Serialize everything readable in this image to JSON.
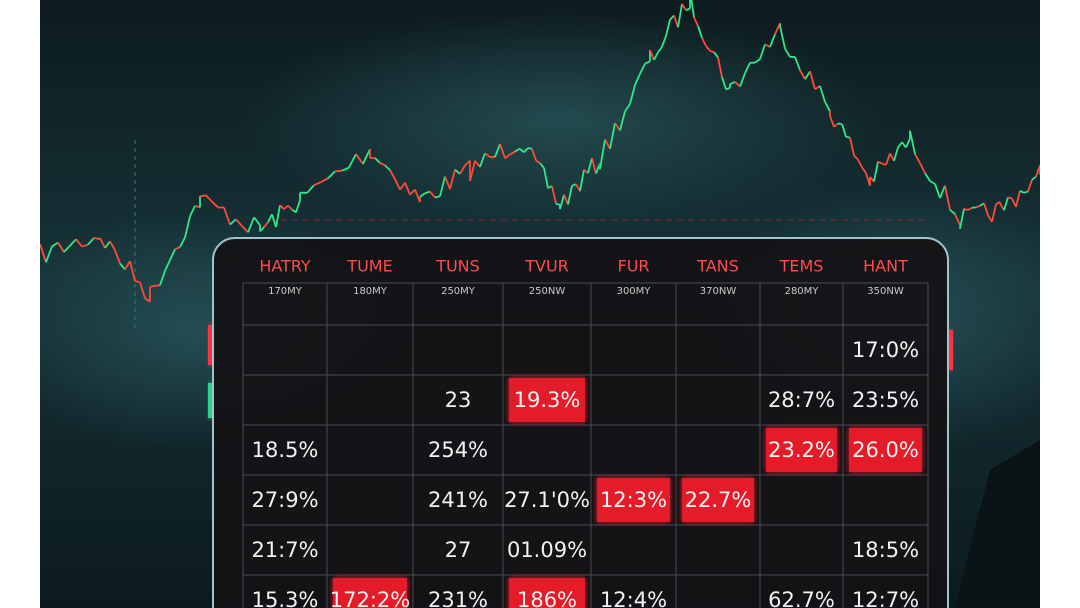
{
  "table": {
    "headers": [
      "HATRY",
      "TUME",
      "TUNS",
      "TVUR",
      "FUR",
      "TANS",
      "TEMS",
      "HANT"
    ],
    "subheaders": [
      "170MY",
      "180MY",
      "250MY",
      "250NW",
      "300MY",
      "370NW",
      "280MY",
      "350NW"
    ],
    "rows": [
      [
        null,
        null,
        null,
        null,
        null,
        null,
        null,
        {
          "text": "17:0%"
        }
      ],
      [
        null,
        null,
        {
          "text": "23"
        },
        {
          "text": "19.3%",
          "highlight": true
        },
        null,
        null,
        {
          "text": "28:7%"
        },
        {
          "text": "23:5%"
        }
      ],
      [
        {
          "text": "18.5%"
        },
        null,
        {
          "text": "254%"
        },
        null,
        null,
        null,
        {
          "text": "23.2%",
          "highlight": true
        },
        {
          "text": "26.0%",
          "highlight": true
        }
      ],
      [
        {
          "text": "27:9%"
        },
        null,
        {
          "text": "241%"
        },
        {
          "text": "27.1'0%"
        },
        {
          "text": "12:3%",
          "highlight": true
        },
        {
          "text": "22.7%",
          "highlight": true
        },
        null,
        null
      ],
      [
        {
          "text": "21:7%"
        },
        null,
        {
          "text": "27"
        },
        {
          "text": "01.09%"
        },
        null,
        null,
        null,
        {
          "text": "18:5%"
        }
      ],
      [
        {
          "text": "15.3%"
        },
        {
          "text": "172:2%",
          "highlight": true
        },
        {
          "text": "231%"
        },
        {
          "text": "186%",
          "highlight": true
        },
        {
          "text": "12:4%"
        },
        null,
        {
          "text": "62.7%"
        },
        {
          "text": "12:7%"
        }
      ]
    ]
  }
}
